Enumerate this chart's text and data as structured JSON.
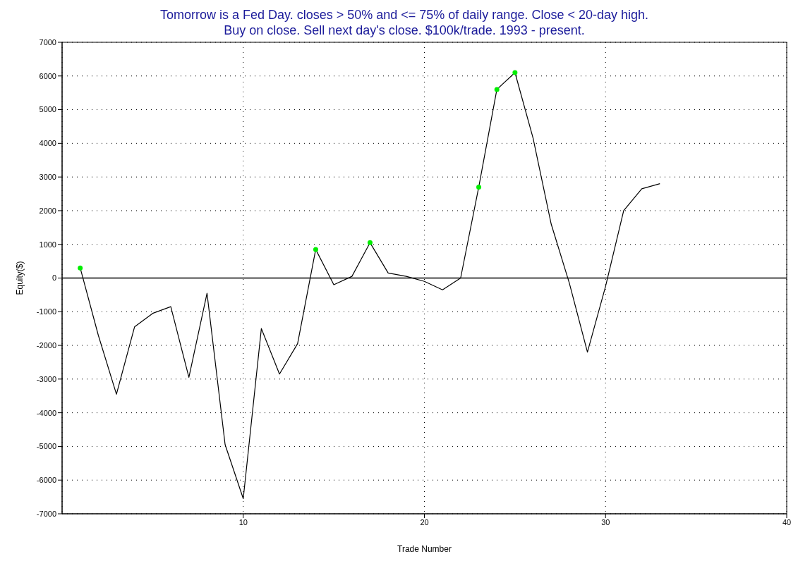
{
  "chart_data": {
    "type": "line",
    "title": "Tomorrow is a Fed Day. closes > 50% and <= 75% of daily range. Close < 20-day high.\nBuy on close. Sell next day's close. $100k/trade. 1993 - present.",
    "xlabel": "Trade Number",
    "ylabel": "Equity($)",
    "series": [
      {
        "color": "#000000",
        "x": [
          1,
          2,
          3,
          4,
          5,
          6,
          7,
          8,
          9,
          10,
          11,
          12,
          13,
          14,
          15,
          16,
          17,
          18,
          19,
          20,
          21,
          22,
          23,
          24,
          25,
          26,
          27,
          28,
          29,
          30,
          31,
          32,
          33
        ],
        "values": [
          300,
          -1700,
          -3450,
          -1450,
          -1050,
          -850,
          -2950,
          -450,
          -4950,
          -6550,
          -1500,
          -2850,
          -1950,
          850,
          -200,
          50,
          1050,
          150,
          50,
          -100,
          -350,
          0,
          2700,
          5600,
          6100,
          4150,
          1600,
          -150,
          -2200,
          -250,
          2000,
          2650,
          2800
        ]
      },
      {
        "type": "scatter",
        "color": "#00ee00",
        "x": [
          1,
          14,
          17,
          23,
          24,
          25
        ],
        "values": [
          300,
          850,
          1050,
          2700,
          5600,
          6100
        ]
      }
    ],
    "xlim": [
      0,
      40
    ],
    "xticks": [
      10,
      20,
      30,
      40
    ],
    "ylim": [
      -7000,
      7000
    ],
    "yticks": [
      -7000,
      -6000,
      -5000,
      -4000,
      -3000,
      -2000,
      -1000,
      0,
      1000,
      2000,
      3000,
      4000,
      5000,
      6000,
      7000
    ],
    "grid": true,
    "line_style": "solid",
    "ref_lines": [
      {
        "axis": "y",
        "value": 0,
        "color": "#000000"
      }
    ]
  }
}
